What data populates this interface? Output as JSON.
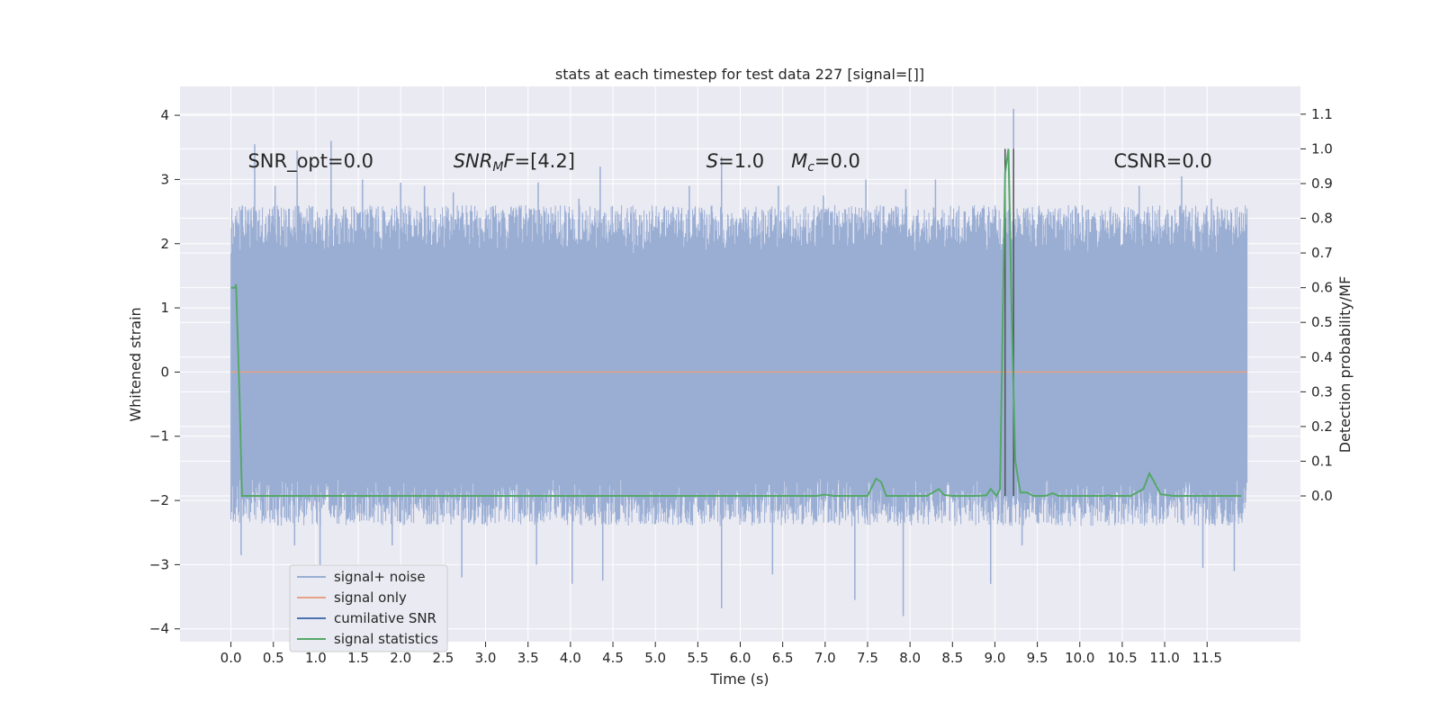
{
  "chart_data": {
    "type": "line",
    "title": "stats at each timestep for test data 227 [signal=[]]",
    "xlabel": "Time (s)",
    "ylabel": "Whitened strain",
    "y2label": "Detection probability/MF",
    "xlim": [
      -0.6,
      12.6
    ],
    "ylim": [
      -4.2,
      4.45
    ],
    "y2lim": [
      -0.42,
      1.18
    ],
    "xticks": [
      "0.0",
      "0.5",
      "1.0",
      "1.5",
      "2.0",
      "2.5",
      "3.0",
      "3.5",
      "4.0",
      "4.5",
      "5.0",
      "5.5",
      "6.0",
      "6.5",
      "7.0",
      "7.5",
      "8.0",
      "8.5",
      "9.0",
      "9.5",
      "10.0",
      "10.5",
      "11.0",
      "11.5"
    ],
    "yticks": [
      "4",
      "3",
      "2",
      "1",
      "0",
      "−1",
      "−2",
      "−3",
      "−4"
    ],
    "y2ticks": [
      "1.1",
      "1.0",
      "0.9",
      "0.8",
      "0.7",
      "0.6",
      "0.5",
      "0.4",
      "0.3",
      "0.2",
      "0.1",
      "0.0"
    ],
    "grid": true,
    "legend_position": "lower-left",
    "colors": {
      "background": "#eaeaf2",
      "grid": "#ffffff",
      "noise": "#9aaed4",
      "signal_only": "#e8a184",
      "cumulative_snr": "#4c72b0",
      "signal_statistics": "#55a868",
      "marker_lines": "#555555"
    },
    "series": [
      {
        "name": "signal+ noise",
        "axis": "left",
        "style": "dense noise band",
        "band": [
          -1.4,
          1.4
        ],
        "envelope_typical": [
          -2.0,
          2.2
        ],
        "x_range": [
          0.0,
          11.97
        ],
        "spikes": [
          [
            0.28,
            3.55
          ],
          [
            0.52,
            2.9
          ],
          [
            0.78,
            3.45
          ],
          [
            1.18,
            3.6
          ],
          [
            1.55,
            3.0
          ],
          [
            2.0,
            2.95
          ],
          [
            2.28,
            2.9
          ],
          [
            2.62,
            2.8
          ],
          [
            3.62,
            2.95
          ],
          [
            4.1,
            2.7
          ],
          [
            4.35,
            3.2
          ],
          [
            5.1,
            2.55
          ],
          [
            5.4,
            2.9
          ],
          [
            5.78,
            3.35
          ],
          [
            6.45,
            2.9
          ],
          [
            6.98,
            2.75
          ],
          [
            7.48,
            3.0
          ],
          [
            7.95,
            2.85
          ],
          [
            8.3,
            3.0
          ],
          [
            9.22,
            4.1
          ],
          [
            10.7,
            2.9
          ],
          [
            11.2,
            3.05
          ],
          [
            11.55,
            2.7
          ],
          [
            0.12,
            -2.85
          ],
          [
            0.75,
            -2.7
          ],
          [
            1.05,
            -3.1
          ],
          [
            1.9,
            -2.7
          ],
          [
            2.72,
            -3.2
          ],
          [
            3.6,
            -3.0
          ],
          [
            4.02,
            -3.3
          ],
          [
            4.38,
            -3.25
          ],
          [
            5.78,
            -3.68
          ],
          [
            6.38,
            -3.15
          ],
          [
            7.35,
            -3.55
          ],
          [
            7.92,
            -3.8
          ],
          [
            8.95,
            -3.3
          ],
          [
            9.32,
            -2.7
          ],
          [
            11.45,
            -3.05
          ],
          [
            11.82,
            -3.1
          ]
        ]
      },
      {
        "name": "signal only",
        "axis": "left",
        "x": [
          0.0,
          11.97
        ],
        "y": [
          0.0,
          0.0
        ]
      },
      {
        "name": "cumilative SNR",
        "axis": "left",
        "x": [],
        "y": []
      },
      {
        "name": "signal statistics",
        "axis": "right",
        "x": [
          0.0,
          0.05,
          0.06,
          0.1,
          0.13,
          0.2,
          1.0,
          2.0,
          3.0,
          4.0,
          5.0,
          6.0,
          6.9,
          7.0,
          7.1,
          7.5,
          7.6,
          7.66,
          7.72,
          7.9,
          8.2,
          8.34,
          8.4,
          8.5,
          8.8,
          8.9,
          8.95,
          9.02,
          9.06,
          9.12,
          9.16,
          9.2,
          9.24,
          9.3,
          9.38,
          9.45,
          9.6,
          9.68,
          9.75,
          10.0,
          10.3,
          10.33,
          10.36,
          10.6,
          10.75,
          10.82,
          10.9,
          10.95,
          11.1,
          11.3,
          11.9
        ],
        "y": [
          0.6,
          0.6,
          0.61,
          0.3,
          0.0,
          0.0,
          0.0,
          0.0,
          0.0,
          0.0,
          0.0,
          0.0,
          0.0,
          0.004,
          0.0,
          0.0,
          0.05,
          0.04,
          0.0,
          0.0,
          0.0,
          0.02,
          0.003,
          0.0,
          0.0,
          0.002,
          0.02,
          0.0,
          0.02,
          0.93,
          1.0,
          0.5,
          0.1,
          0.01,
          0.01,
          0.0,
          0.0,
          0.008,
          0.0,
          0.0,
          0.0,
          0.002,
          0.0,
          0.0,
          0.02,
          0.065,
          0.03,
          0.005,
          0.0,
          0.0,
          0.0
        ]
      }
    ],
    "vlines": [
      9.12,
      9.22
    ],
    "annotations": [
      {
        "key": "snr_opt",
        "text": "SNR_opt=0.0",
        "x": 0.2
      },
      {
        "key": "snr_mf",
        "base": "SNR",
        "sub": "M",
        "tail": "F=[4.2]",
        "x": 2.62
      },
      {
        "key": "s",
        "base": "S",
        "tail": "=1.0",
        "x": 5.6
      },
      {
        "key": "mc",
        "base": "M",
        "sub": "c",
        "tail": "=0.0",
        "x": 6.6
      },
      {
        "key": "csnr",
        "text": "CSNR=0.0",
        "x": 10.4
      }
    ],
    "annotation_y": 3.3
  }
}
